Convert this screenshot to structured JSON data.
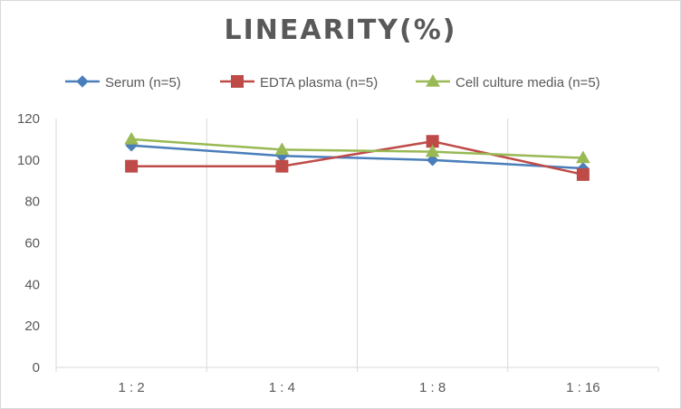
{
  "chart_data": {
    "type": "line",
    "title": "LINEARITY(%)",
    "categories": [
      "1:2",
      "1:4",
      "1:8",
      "1:16"
    ],
    "series": [
      {
        "name": "Serum (n=5)",
        "values": [
          107,
          102,
          100,
          96
        ],
        "color": "#4a7ebb",
        "marker": "diamond"
      },
      {
        "name": "EDTA plasma (n=5)",
        "values": [
          97,
          97,
          109,
          93
        ],
        "color": "#be4b48",
        "marker": "square"
      },
      {
        "name": "Cell culture media (n=5)",
        "values": [
          110,
          105,
          104,
          101
        ],
        "color": "#98b954",
        "marker": "triangle"
      }
    ],
    "ylim": [
      0,
      120
    ],
    "yticks": [
      0,
      20,
      40,
      60,
      80,
      100,
      120
    ],
    "grid": "vertical",
    "legend": "top"
  }
}
